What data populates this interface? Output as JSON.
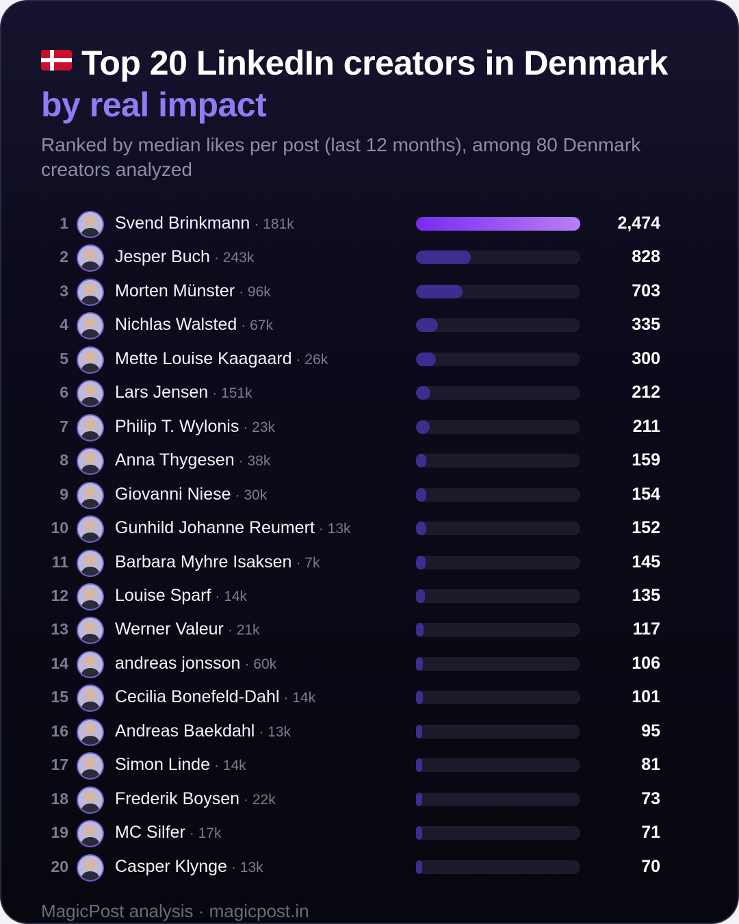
{
  "header": {
    "flag": "Denmark flag",
    "title_main": "Top 20 LinkedIn creators in Denmark",
    "title_accent": "by real impact",
    "subtitle": "Ranked by median likes per post (last 12 months), among 80 Denmark creators analyzed"
  },
  "footer": {
    "text": "MagicPost analysis · magicpost.in"
  },
  "colors": {
    "background": "#0c0b1c",
    "accent": "#8d7cf3",
    "top_bar_start": "#7a2bef",
    "top_bar_end": "#b77ff5",
    "bar": "#3e2c8e",
    "track": "#1b1b2b"
  },
  "chart_data": {
    "type": "bar",
    "orientation": "horizontal",
    "title": "Top 20 LinkedIn creators in Denmark by real impact",
    "subtitle": "Ranked by median likes per post (last 12 months), among 80 Denmark creators analyzed",
    "xlim": [
      0,
      2474
    ],
    "grid": false,
    "rows": [
      {
        "rank": "1",
        "name": "Svend Brinkmann",
        "followers": "· 181k",
        "value": 2474,
        "value_label": "2,474"
      },
      {
        "rank": "2",
        "name": "Jesper Buch",
        "followers": "· 243k",
        "value": 828,
        "value_label": "828"
      },
      {
        "rank": "3",
        "name": "Morten Münster",
        "followers": "· 96k",
        "value": 703,
        "value_label": "703"
      },
      {
        "rank": "4",
        "name": "Nichlas Walsted",
        "followers": "· 67k",
        "value": 335,
        "value_label": "335"
      },
      {
        "rank": "5",
        "name": "Mette Louise Kaagaard",
        "followers": "· 26k",
        "value": 300,
        "value_label": "300"
      },
      {
        "rank": "6",
        "name": "Lars Jensen",
        "followers": "· 151k",
        "value": 212,
        "value_label": "212"
      },
      {
        "rank": "7",
        "name": "Philip T. Wylonis",
        "followers": "· 23k",
        "value": 211,
        "value_label": "211"
      },
      {
        "rank": "8",
        "name": "Anna Thygesen",
        "followers": "· 38k",
        "value": 159,
        "value_label": "159"
      },
      {
        "rank": "9",
        "name": "Giovanni Niese",
        "followers": "· 30k",
        "value": 154,
        "value_label": "154"
      },
      {
        "rank": "10",
        "name": "Gunhild Johanne Reumert",
        "followers": "· 13k",
        "value": 152,
        "value_label": "152"
      },
      {
        "rank": "11",
        "name": "Barbara Myhre Isaksen",
        "followers": "· 7k",
        "value": 145,
        "value_label": "145"
      },
      {
        "rank": "12",
        "name": "Louise Sparf",
        "followers": "· 14k",
        "value": 135,
        "value_label": "135"
      },
      {
        "rank": "13",
        "name": "Werner Valeur",
        "followers": "· 21k",
        "value": 117,
        "value_label": "117"
      },
      {
        "rank": "14",
        "name": "andreas jonsson",
        "followers": "· 60k",
        "value": 106,
        "value_label": "106"
      },
      {
        "rank": "15",
        "name": "Cecilia Bonefeld-Dahl",
        "followers": "· 14k",
        "value": 101,
        "value_label": "101"
      },
      {
        "rank": "16",
        "name": "Andreas Baekdahl",
        "followers": "· 13k",
        "value": 95,
        "value_label": "95"
      },
      {
        "rank": "17",
        "name": "Simon Linde",
        "followers": "· 14k",
        "value": 81,
        "value_label": "81"
      },
      {
        "rank": "18",
        "name": "Frederik Boysen",
        "followers": "· 22k",
        "value": 73,
        "value_label": "73"
      },
      {
        "rank": "19",
        "name": "MC Silfer",
        "followers": "· 17k",
        "value": 71,
        "value_label": "71"
      },
      {
        "rank": "20",
        "name": "Casper Klynge",
        "followers": "· 13k",
        "value": 70,
        "value_label": "70"
      }
    ]
  }
}
